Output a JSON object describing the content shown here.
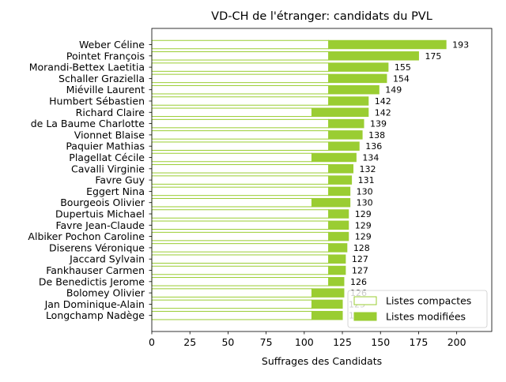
{
  "chart_data": {
    "type": "bar",
    "orientation": "horizontal",
    "stacked": true,
    "title": "VD-CH de l'étranger: candidats du PVL",
    "xlabel": "Suffrages des Candidats",
    "ylabel": "",
    "xlim": [
      0,
      223
    ],
    "xticks": [
      0,
      25,
      50,
      75,
      100,
      125,
      150,
      175,
      200
    ],
    "grid": false,
    "legend_position": "lower right",
    "colors": {
      "bar": "#9acd32",
      "compact_face": "#ffffff",
      "axis": "#000000"
    },
    "categories": [
      "Weber Céline",
      "Pointet François",
      "Morandi-Bettex Laetitia",
      "Schaller Graziella",
      "Miéville Laurent",
      "Humbert Sébastien",
      "Richard Claire",
      "de La Baume Charlotte",
      "Vionnet Blaise",
      "Paquier Mathias",
      "Plagellat Cécile",
      "Cavalli Virginie",
      "Favre Guy",
      "Eggert Nina",
      "Bourgeois Olivier",
      "Dupertuis Michael",
      "Favre Jean-Claude",
      "Albiker Pochon Caroline",
      "Diserens Véronique",
      "Jaccard Sylvain",
      "Fankhauser Carmen",
      "De Benedictis Jerome",
      "Bolomey Olivier",
      "Jan Dominique-Alain",
      "Longchamp Nadège"
    ],
    "series": [
      {
        "name": "Listes compactes",
        "values": [
          116,
          116,
          116,
          116,
          116,
          116,
          105,
          116,
          116,
          116,
          105,
          116,
          116,
          116,
          105,
          116,
          116,
          116,
          116,
          116,
          116,
          116,
          105,
          105,
          105
        ]
      },
      {
        "name": "Listes modifiées",
        "values": [
          77,
          59,
          39,
          38,
          33,
          26,
          37,
          23,
          22,
          20,
          29,
          16,
          15,
          14,
          25,
          13,
          13,
          13,
          12,
          11,
          11,
          10,
          21,
          20,
          20
        ]
      }
    ],
    "totals": [
      193,
      175,
      155,
      154,
      149,
      142,
      142,
      139,
      138,
      136,
      134,
      132,
      131,
      130,
      130,
      129,
      129,
      129,
      128,
      127,
      127,
      126,
      126,
      125,
      125
    ],
    "total_labels": [
      "193",
      "175",
      "155",
      "154",
      "149",
      "142",
      "142",
      "139",
      "138",
      "136",
      "134",
      "132",
      "131",
      "130",
      "130",
      "129",
      "129",
      "129",
      "128",
      "127",
      "127",
      "126",
      "126",
      "125",
      "125"
    ]
  }
}
